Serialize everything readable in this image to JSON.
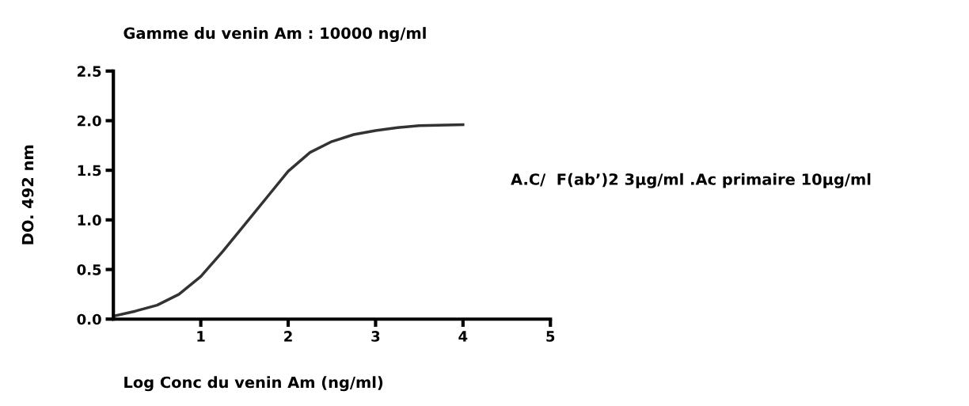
{
  "chart_data": {
    "type": "line",
    "title": "Gamme du venin Am : 10000 ng/ml",
    "xlabel": "Log Conc du venin Am (ng/ml)",
    "ylabel": "DO. 492 nm",
    "annotations": [
      "A.C/  F(ab’)2 3µg/ml .Ac primaire 10µg/ml"
    ],
    "x": [
      0,
      0.25,
      0.5,
      0.75,
      1,
      1.25,
      1.5,
      1.75,
      2,
      2.25,
      2.5,
      2.75,
      3,
      3.25,
      3.5,
      4
    ],
    "series": [
      {
        "color": "#333333",
        "values": [
          0.03,
          0.08,
          0.14,
          0.25,
          0.43,
          0.68,
          0.95,
          1.22,
          1.49,
          1.68,
          1.79,
          1.86,
          1.9,
          1.93,
          1.95,
          1.96
        ]
      }
    ],
    "xlim": [
      0,
      5
    ],
    "xticks": [
      1,
      2,
      3,
      4,
      5
    ],
    "ylim": [
      0,
      2.5
    ],
    "yticks": [
      {
        "value": 0,
        "label": "0.0"
      },
      {
        "value": 0.5,
        "label": "0.5"
      },
      {
        "value": 1,
        "label": "1.0"
      },
      {
        "value": 1.5,
        "label": "1.5"
      },
      {
        "value": 2,
        "label": "2.0"
      },
      {
        "value": 2.5,
        "label": "2.5"
      }
    ],
    "grid": false,
    "legend": false,
    "marker": "none",
    "line_style": "solid"
  }
}
